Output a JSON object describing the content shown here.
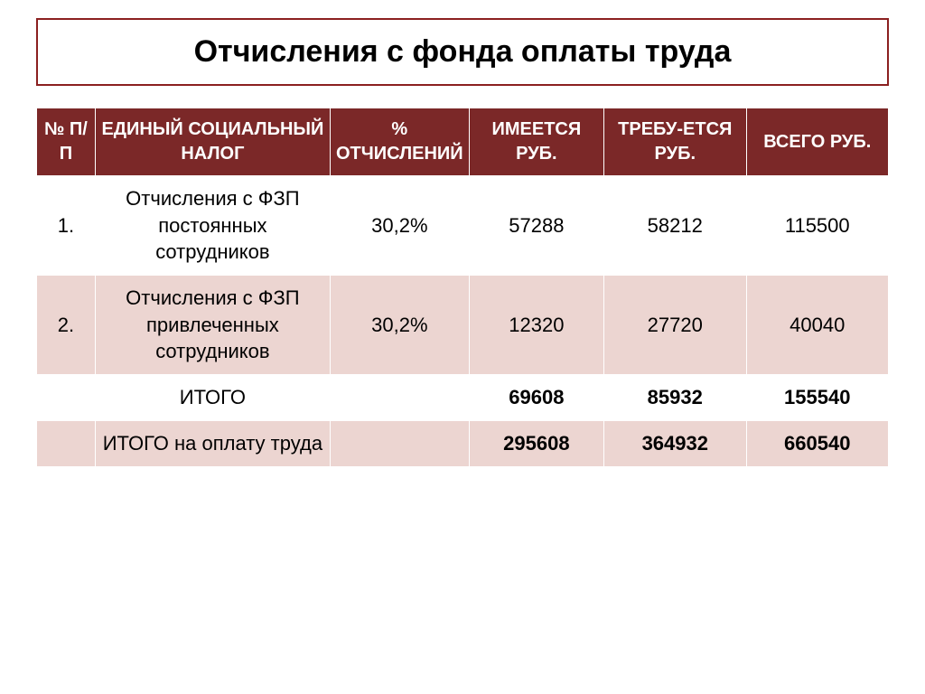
{
  "title": "Отчисления с фонда оплаты труда",
  "table": {
    "headers": {
      "num": "№ П/П",
      "tax": "ЕДИНЫЙ СОЦИАЛЬНЫЙ НАЛОГ",
      "percent": "% ОТЧИСЛЕНИЙ",
      "available": "ИМЕЕТСЯ РУБ.",
      "required": "ТРЕБУ-ЕТСЯ РУБ.",
      "total": "ВСЕГО РУБ."
    },
    "rows": [
      {
        "num": "1.",
        "desc": "Отчисления с ФЗП постоянных сотрудников",
        "percent": "30,2%",
        "available": "57288",
        "required": "58212",
        "total": "115500",
        "row_class": "row-white",
        "bold": false
      },
      {
        "num": "2.",
        "desc": "Отчисления с ФЗП привлеченных сотрудников",
        "percent": "30,2%",
        "available": "12320",
        "required": "27720",
        "total": "40040",
        "row_class": "row-pink",
        "bold": false
      },
      {
        "num": "",
        "desc": "ИТОГО",
        "percent": "",
        "available": "69608",
        "required": "85932",
        "total": "155540",
        "row_class": "row-white",
        "bold": true
      },
      {
        "num": "",
        "desc": "ИТОГО на оплату труда",
        "percent": "",
        "available": "295608",
        "required": "364932",
        "total": "660540",
        "row_class": "row-pink",
        "bold": true
      }
    ],
    "styling": {
      "header_bg": "#7b2828",
      "header_fg": "#ffffff",
      "row_white_bg": "#ffffff",
      "row_pink_bg": "#ecd5d1",
      "border_color": "#ffffff",
      "title_border": "#8b2020",
      "header_fontsize": 20,
      "cell_fontsize": 22,
      "title_fontsize": 34
    }
  }
}
